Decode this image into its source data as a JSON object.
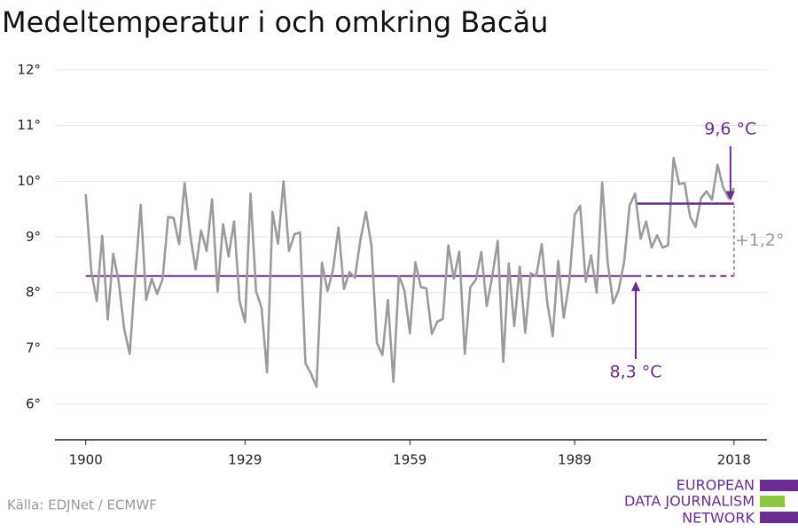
{
  "chart_data": {
    "type": "line",
    "title": "Medeltemperatur i och omkring Bacău",
    "source": "Källa: EDJNet / ECMWF",
    "logo": [
      "EUROPEAN",
      "DATA JOURNALISM",
      "NETWORK"
    ],
    "xlim": [
      1894.4,
      2024
    ],
    "xticks": [
      1900,
      1929,
      1959,
      1989,
      2018
    ],
    "ylim": [
      5.36,
      12.3
    ],
    "yticks": [
      {
        "value": 6,
        "label": "6°"
      },
      {
        "value": 7,
        "label": "7°"
      },
      {
        "value": 8,
        "label": "8°"
      },
      {
        "value": 9,
        "label": "9°"
      },
      {
        "value": 10,
        "label": "10°"
      },
      {
        "value": 11,
        "label": "11°"
      },
      {
        "value": 12,
        "label": "12°"
      }
    ],
    "grid": true,
    "x": [
      1900,
      1901,
      1902,
      1903,
      1904,
      1905,
      1906,
      1907,
      1908,
      1909,
      1910,
      1911,
      1912,
      1913,
      1914,
      1915,
      1916,
      1917,
      1918,
      1919,
      1920,
      1921,
      1922,
      1923,
      1924,
      1925,
      1926,
      1927,
      1928,
      1929,
      1930,
      1931,
      1932,
      1933,
      1934,
      1935,
      1936,
      1937,
      1938,
      1939,
      1940,
      1941,
      1942,
      1943,
      1944,
      1945,
      1946,
      1947,
      1948,
      1949,
      1950,
      1951,
      1952,
      1953,
      1954,
      1955,
      1956,
      1957,
      1958,
      1959,
      1960,
      1961,
      1962,
      1963,
      1964,
      1965,
      1966,
      1967,
      1968,
      1969,
      1970,
      1971,
      1972,
      1973,
      1974,
      1975,
      1976,
      1977,
      1978,
      1979,
      1980,
      1981,
      1982,
      1983,
      1984,
      1985,
      1986,
      1987,
      1988,
      1989,
      1990,
      1991,
      1992,
      1993,
      1994,
      1995,
      1996,
      1997,
      1998,
      1999,
      2000,
      2001,
      2002,
      2003,
      2004,
      2005,
      2006,
      2007,
      2008,
      2009,
      2010,
      2011,
      2012,
      2013,
      2014,
      2015,
      2016,
      2017,
      2018
    ],
    "series": [
      {
        "color": "#9b9b9b",
        "values": [
          9.77,
          8.4,
          7.85,
          9.02,
          7.52,
          8.7,
          8.2,
          7.35,
          6.9,
          8.3,
          9.58,
          7.87,
          8.25,
          7.98,
          8.25,
          9.36,
          9.34,
          8.87,
          9.97,
          9.05,
          8.42,
          9.12,
          8.75,
          9.68,
          8.02,
          9.23,
          8.65,
          9.28,
          7.85,
          7.47,
          9.78,
          8.03,
          7.73,
          6.57,
          9.45,
          8.88,
          10.0,
          8.75,
          9.05,
          9.08,
          6.73,
          6.55,
          6.31,
          8.54,
          8.03,
          8.4,
          9.17,
          8.07,
          8.37,
          8.27,
          8.95,
          9.45,
          8.85,
          7.1,
          6.88,
          7.87,
          6.4,
          8.3,
          8.05,
          7.27,
          8.55,
          8.1,
          8.08,
          7.26,
          7.48,
          7.53,
          8.85,
          8.25,
          8.74,
          6.9,
          8.1,
          8.23,
          8.73,
          7.76,
          8.3,
          8.93,
          6.76,
          8.53,
          7.4,
          8.47,
          7.28,
          8.35,
          8.3,
          8.87,
          7.83,
          7.22,
          8.57,
          7.55,
          8.18,
          9.4,
          9.56,
          8.2,
          8.67,
          8.0,
          9.98,
          8.55,
          7.81,
          8.05,
          8.55,
          9.57,
          9.78,
          8.97,
          9.28,
          8.81,
          9.03,
          8.81,
          8.85,
          10.42,
          9.95,
          9.97,
          9.37,
          9.18,
          9.7,
          9.82,
          9.67,
          10.3,
          9.9,
          9.7,
          9.88
        ]
      }
    ],
    "reference_lines": [
      {
        "value": 8.3,
        "label": "8,3 °C",
        "from": 1900,
        "to": 2018,
        "solid_to": 2000,
        "color": "#6a2c91"
      },
      {
        "value": 9.6,
        "label": "9,6 °C",
        "from": 2000.4,
        "to": 2018,
        "color": "#6a2c91"
      }
    ],
    "difference": {
      "value": 1.2,
      "label": "+1,2°",
      "color": "#9b9b9b"
    }
  }
}
